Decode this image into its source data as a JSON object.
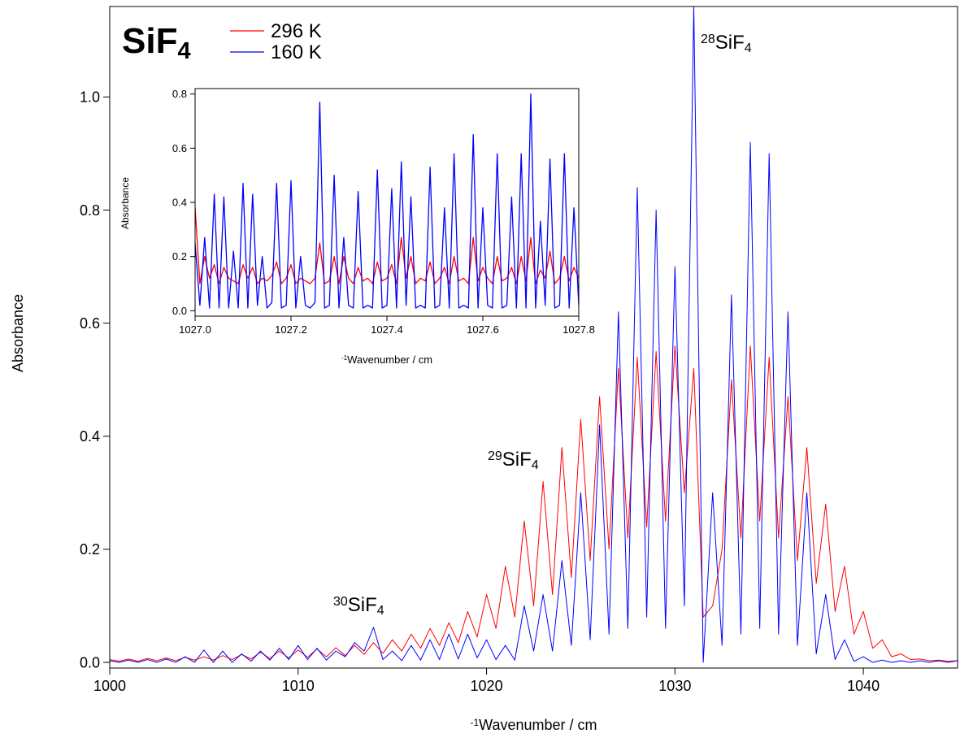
{
  "chart_data": [
    {
      "type": "line",
      "title": {
        "base": "SiF",
        "sub": "4"
      },
      "xlabel": {
        "base": "Wavenumber / cm",
        "sup": "-1"
      },
      "ylabel": "Absorbance",
      "legend": "top-left",
      "annotations": [
        {
          "sup": "28",
          "base": "SiF",
          "sub": "4"
        },
        {
          "sup": "29",
          "base": "SiF",
          "sub": "4"
        },
        {
          "sup": "30",
          "base": "SiF",
          "sub": "4"
        }
      ],
      "xlim": [
        1000,
        1045
      ],
      "ylim": [
        -0.01,
        1.16
      ],
      "xticks": [
        1000,
        1010,
        1020,
        1030,
        1040
      ],
      "yticks": [
        {
          "value": 0,
          "label": "0.0"
        },
        {
          "value": 0.2,
          "label": "0.2"
        },
        {
          "value": 0.4,
          "label": "0.4"
        },
        {
          "value": 0.6,
          "label": "0.6"
        },
        {
          "value": 0.8,
          "label": "0.8"
        },
        {
          "value": 1,
          "label": "1.0"
        }
      ],
      "x": [
        1000,
        1000.5,
        1001,
        1001.5,
        1002,
        1002.5,
        1003,
        1003.5,
        1004,
        1004.5,
        1005,
        1005.5,
        1006,
        1006.5,
        1007,
        1007.5,
        1008,
        1008.5,
        1009,
        1009.5,
        1010,
        1010.5,
        1011,
        1011.5,
        1012,
        1012.5,
        1013,
        1013.5,
        1014,
        1014.5,
        1015,
        1015.5,
        1016,
        1016.5,
        1017,
        1017.5,
        1018,
        1018.5,
        1019,
        1019.5,
        1020,
        1020.5,
        1021,
        1021.5,
        1022,
        1022.5,
        1023,
        1023.5,
        1024,
        1024.5,
        1025,
        1025.5,
        1026,
        1026.5,
        1027,
        1027.5,
        1028,
        1028.5,
        1029,
        1029.5,
        1030,
        1030.5,
        1031,
        1031.5,
        1032,
        1032.5,
        1033,
        1033.5,
        1034,
        1034.5,
        1035,
        1035.5,
        1036,
        1036.5,
        1037,
        1037.5,
        1038,
        1038.5,
        1039,
        1039.5,
        1040,
        1040.5,
        1041,
        1041.5,
        1042,
        1042.5,
        1043,
        1043.5,
        1044,
        1044.5,
        1045
      ],
      "series": [
        {
          "name": "296 K",
          "color": "#ff0000",
          "values": [
            0.005,
            0.002,
            0.006,
            0.002,
            0.007,
            0.003,
            0.008,
            0.003,
            0.009,
            0.004,
            0.01,
            0.004,
            0.012,
            0.005,
            0.014,
            0.006,
            0.018,
            0.007,
            0.02,
            0.008,
            0.022,
            0.009,
            0.024,
            0.01,
            0.026,
            0.012,
            0.03,
            0.014,
            0.035,
            0.016,
            0.04,
            0.02,
            0.05,
            0.025,
            0.06,
            0.03,
            0.07,
            0.035,
            0.09,
            0.045,
            0.12,
            0.06,
            0.17,
            0.08,
            0.25,
            0.1,
            0.32,
            0.12,
            0.38,
            0.15,
            0.43,
            0.18,
            0.47,
            0.2,
            0.52,
            0.22,
            0.54,
            0.24,
            0.55,
            0.25,
            0.56,
            0.3,
            0.52,
            0.08,
            0.1,
            0.2,
            0.5,
            0.22,
            0.56,
            0.25,
            0.54,
            0.22,
            0.47,
            0.18,
            0.38,
            0.14,
            0.28,
            0.09,
            0.17,
            0.05,
            0.09,
            0.025,
            0.04,
            0.01,
            0.015,
            0.005,
            0.006,
            0.003,
            0.004,
            0.002,
            0.003
          ]
        },
        {
          "name": "160 K",
          "color": "#0000ff",
          "values": [
            0.003,
            0,
            0.004,
            0,
            0.005,
            0,
            0.006,
            0,
            0.01,
            0,
            0.022,
            0,
            0.02,
            0,
            0.015,
            0.002,
            0.02,
            0.004,
            0.025,
            0.005,
            0.03,
            0.005,
            0.025,
            0.004,
            0.02,
            0.01,
            0.035,
            0.02,
            0.062,
            0.005,
            0.02,
            0.003,
            0.03,
            0.004,
            0.04,
            0.005,
            0.05,
            0.006,
            0.05,
            0.008,
            0.04,
            0.005,
            0.03,
            0.004,
            0.1,
            0.02,
            0.12,
            0.02,
            0.18,
            0.03,
            0.3,
            0.04,
            0.42,
            0.05,
            0.62,
            0.06,
            0.84,
            0.08,
            0.8,
            0.06,
            0.7,
            0.1,
            1.16,
            0,
            0.3,
            0.03,
            0.65,
            0.05,
            0.92,
            0.06,
            0.9,
            0.05,
            0.62,
            0.03,
            0.3,
            0.015,
            0.12,
            0.005,
            0.04,
            0.002,
            0.01,
            0,
            0.004,
            0,
            0.003,
            0,
            0.003,
            0,
            0.003,
            0,
            0.003
          ]
        }
      ]
    },
    {
      "type": "line",
      "xlabel": {
        "base": "Wavenumber / cm",
        "sup": "-1"
      },
      "ylabel": "Absorbance",
      "xlim": [
        1027.0,
        1027.8
      ],
      "ylim": [
        -0.02,
        0.82
      ],
      "xticks": [
        {
          "value": 1027,
          "label": "1027.0"
        },
        {
          "value": 1027.2,
          "label": "1027.2"
        },
        {
          "value": 1027.4,
          "label": "1027.4"
        },
        {
          "value": 1027.6,
          "label": "1027.6"
        },
        {
          "value": 1027.8,
          "label": "1027.8"
        }
      ],
      "yticks": [
        {
          "value": 0,
          "label": "0.0"
        },
        {
          "value": 0.2,
          "label": "0.2"
        },
        {
          "value": 0.4,
          "label": "0.4"
        },
        {
          "value": 0.6,
          "label": "0.6"
        },
        {
          "value": 0.8,
          "label": "0.8"
        }
      ],
      "x": [
        1027,
        1027.01,
        1027.02,
        1027.03,
        1027.04,
        1027.05,
        1027.06,
        1027.07,
        1027.08,
        1027.09,
        1027.1,
        1027.11,
        1027.12,
        1027.13,
        1027.14,
        1027.15,
        1027.16,
        1027.17,
        1027.18,
        1027.19,
        1027.2,
        1027.21,
        1027.22,
        1027.23,
        1027.24,
        1027.25,
        1027.26,
        1027.27,
        1027.28,
        1027.29,
        1027.3,
        1027.31,
        1027.32,
        1027.33,
        1027.34,
        1027.35,
        1027.36,
        1027.37,
        1027.38,
        1027.39,
        1027.4,
        1027.41,
        1027.42,
        1027.43,
        1027.44,
        1027.45,
        1027.46,
        1027.47,
        1027.48,
        1027.49,
        1027.5,
        1027.51,
        1027.52,
        1027.53,
        1027.54,
        1027.55,
        1027.56,
        1027.57,
        1027.58,
        1027.59,
        1027.6,
        1027.61,
        1027.62,
        1027.63,
        1027.64,
        1027.65,
        1027.66,
        1027.67,
        1027.68,
        1027.69,
        1027.7,
        1027.71,
        1027.72,
        1027.73,
        1027.74,
        1027.75,
        1027.76,
        1027.77,
        1027.78,
        1027.79,
        1027.8
      ],
      "series": [
        {
          "name": "296 K",
          "color": "#ff0000",
          "values": [
            0.38,
            0.1,
            0.2,
            0.12,
            0.17,
            0.1,
            0.16,
            0.12,
            0.11,
            0.1,
            0.17,
            0.12,
            0.16,
            0.1,
            0.12,
            0.11,
            0.13,
            0.18,
            0.1,
            0.12,
            0.17,
            0.1,
            0.12,
            0.11,
            0.1,
            0.12,
            0.25,
            0.1,
            0.11,
            0.2,
            0.1,
            0.2,
            0.12,
            0.1,
            0.16,
            0.11,
            0.12,
            0.1,
            0.18,
            0.11,
            0.12,
            0.17,
            0.1,
            0.27,
            0.12,
            0.2,
            0.1,
            0.12,
            0.11,
            0.18,
            0.1,
            0.12,
            0.16,
            0.1,
            0.2,
            0.11,
            0.12,
            0.1,
            0.27,
            0.11,
            0.16,
            0.12,
            0.1,
            0.2,
            0.11,
            0.12,
            0.16,
            0.1,
            0.2,
            0.11,
            0.27,
            0.1,
            0.15,
            0.12,
            0.22,
            0.1,
            0.12,
            0.2,
            0.11,
            0.16,
            0.12
          ]
        },
        {
          "name": "160 K",
          "color": "#0000ff",
          "values": [
            0.25,
            0.02,
            0.27,
            0.01,
            0.43,
            0.01,
            0.42,
            0.01,
            0.22,
            0.01,
            0.47,
            0.01,
            0.43,
            0.02,
            0.2,
            0.01,
            0.03,
            0.47,
            0.01,
            0.02,
            0.48,
            0.01,
            0.2,
            0.02,
            0.01,
            0.03,
            0.77,
            0.01,
            0.02,
            0.5,
            0.01,
            0.27,
            0.02,
            0.01,
            0.44,
            0.01,
            0.02,
            0.01,
            0.52,
            0.01,
            0.02,
            0.45,
            0.01,
            0.55,
            0.02,
            0.42,
            0.01,
            0.02,
            0.01,
            0.53,
            0.01,
            0.02,
            0.38,
            0.01,
            0.58,
            0.01,
            0.02,
            0.01,
            0.65,
            0.01,
            0.38,
            0.02,
            0.01,
            0.58,
            0.01,
            0.02,
            0.42,
            0.01,
            0.58,
            0.01,
            0.8,
            0.01,
            0.33,
            0.02,
            0.56,
            0.01,
            0.02,
            0.58,
            0.01,
            0.38,
            0.02
          ]
        }
      ]
    }
  ]
}
